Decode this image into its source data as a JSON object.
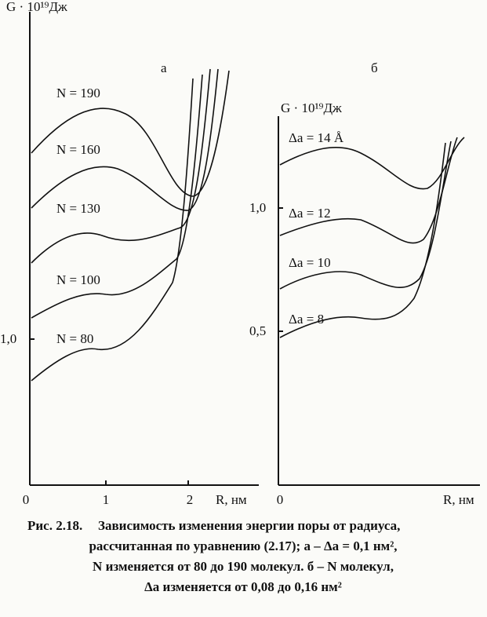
{
  "figure": {
    "panels": [
      {
        "label": "а",
        "y_label": "G · 10¹⁹Дж",
        "x_label": "R, нм",
        "x_ticks": [
          "0",
          "1",
          "2"
        ],
        "y_ticks": [
          "1,0"
        ],
        "curve_labels": [
          "N = 190",
          "N = 160",
          "N = 130",
          "N = 100",
          "N = 80"
        ]
      },
      {
        "label": "б",
        "y_label": "G · 10¹⁹Дж",
        "x_label": "R, нм",
        "x_ticks": [
          "0"
        ],
        "y_ticks": [
          "1,0",
          "0,5"
        ],
        "curve_labels": [
          "Δa = 14 Å",
          "Δa = 12",
          "Δa = 10",
          "Δa = 8"
        ]
      }
    ],
    "caption": {
      "number": "Рис. 2.18.",
      "lines": [
        "Зависимость изменения энергии поры от радиуса,",
        "рассчитанная по уравнению (2.17); а – Δa = 0,1 нм²,",
        "N изменяется от 80 до 190 молекул. б – N молекул,",
        "Δa изменяется от 0,08 до 0,16 нм²"
      ]
    }
  }
}
